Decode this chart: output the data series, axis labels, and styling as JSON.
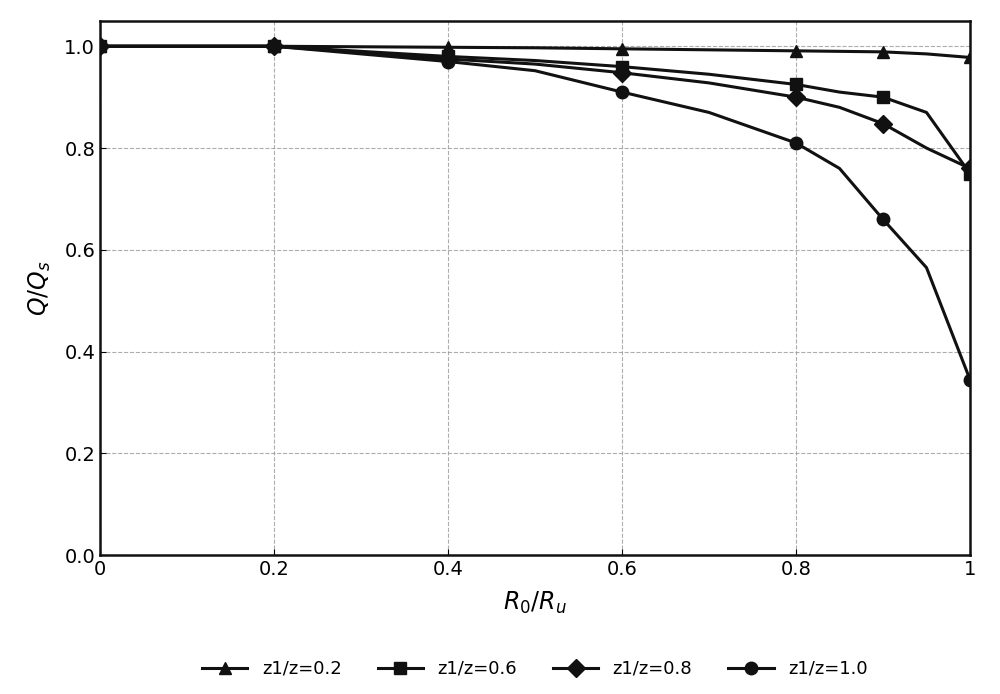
{
  "x": [
    0,
    0.2,
    0.4,
    0.5,
    0.6,
    0.7,
    0.8,
    0.85,
    0.9,
    0.95,
    1.0
  ],
  "series": {
    "z1/z=0.2": [
      1.0,
      1.0,
      0.998,
      0.997,
      0.995,
      0.993,
      0.991,
      0.99,
      0.989,
      0.985,
      0.978
    ],
    "z1/z=0.6": [
      1.0,
      1.0,
      0.98,
      0.972,
      0.96,
      0.945,
      0.925,
      0.91,
      0.9,
      0.87,
      0.75
    ],
    "z1/z=0.8": [
      1.0,
      1.0,
      0.975,
      0.965,
      0.948,
      0.928,
      0.9,
      0.88,
      0.848,
      0.8,
      0.76
    ],
    "z1/z=1.0": [
      1.0,
      1.0,
      0.97,
      0.952,
      0.91,
      0.87,
      0.81,
      0.76,
      0.66,
      0.565,
      0.345
    ]
  },
  "markers": {
    "z1/z=0.2": "^",
    "z1/z=0.6": "s",
    "z1/z=0.8": "D",
    "z1/z=1.0": "o"
  },
  "marker_x": {
    "z1/z=0.2": [
      0,
      0.2,
      0.4,
      0.6,
      0.8,
      0.9,
      1.0
    ],
    "z1/z=0.6": [
      0,
      0.2,
      0.4,
      0.6,
      0.8,
      0.9,
      1.0
    ],
    "z1/z=0.8": [
      0,
      0.2,
      0.4,
      0.6,
      0.8,
      0.9,
      1.0
    ],
    "z1/z=1.0": [
      0,
      0.2,
      0.4,
      0.6,
      0.8,
      0.9,
      1.0
    ]
  },
  "marker_y": {
    "z1/z=0.2": [
      1.0,
      1.0,
      0.998,
      0.995,
      0.991,
      0.989,
      0.978
    ],
    "z1/z=0.6": [
      1.0,
      1.0,
      0.98,
      0.96,
      0.925,
      0.9,
      0.75
    ],
    "z1/z=0.8": [
      1.0,
      1.0,
      0.975,
      0.948,
      0.9,
      0.848,
      0.76
    ],
    "z1/z=1.0": [
      1.0,
      1.0,
      0.97,
      0.91,
      0.81,
      0.66,
      0.345
    ]
  },
  "xlabel": "$\\it{R}$$_0$/$\\it{R}$$_u$",
  "ylabel": "$\\it{Q}$/$\\it{Q}$$_s$",
  "xlim": [
    0,
    1.0
  ],
  "ylim": [
    0.0,
    1.05
  ],
  "xticks": [
    0,
    0.2,
    0.4,
    0.6,
    0.8,
    1
  ],
  "xtick_labels": [
    "0",
    "0.2",
    "0.4",
    "0.6",
    "0.8",
    "1"
  ],
  "yticks": [
    0.0,
    0.2,
    0.4,
    0.6,
    0.8,
    1.0
  ],
  "ytick_labels": [
    "0.0",
    "0.2",
    "0.4",
    "0.6",
    "0.8",
    "1.0"
  ],
  "grid_color": "#999999",
  "line_color": "#111111",
  "background_color": "#ffffff",
  "legend_labels": [
    "z1/z=0.2",
    "z1/z=0.6",
    "z1/z=0.8",
    "z1/z=1.0"
  ],
  "legend_display": [
    "z1/z=0.2",
    "z1/z=0.6",
    "z1/z=0.8",
    "z1/z=1.0"
  ],
  "linewidth": 2.2,
  "markersize": 9,
  "fontsize_label": 17,
  "fontsize_tick": 14,
  "fontsize_legend": 13
}
